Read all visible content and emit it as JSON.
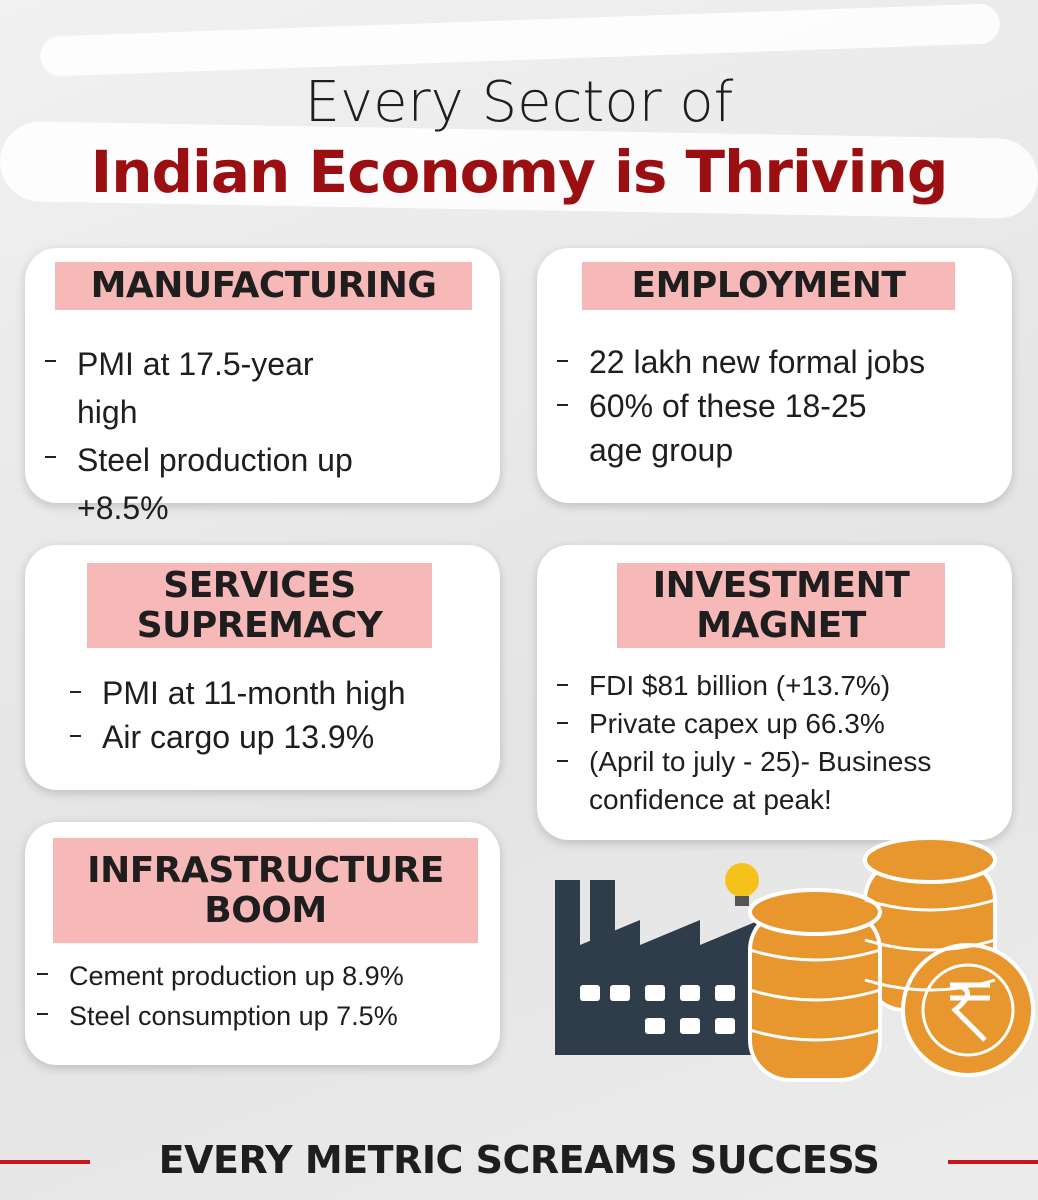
{
  "header": {
    "line1": "Every Sector of",
    "line2": "Indian Economy is Thriving"
  },
  "cards": [
    {
      "heading": "MANUFACTURING",
      "items": [
        "PMI at 17.5-year high",
        "Steel production up +8.5%"
      ]
    },
    {
      "heading": "EMPLOYMENT",
      "items": [
        "22 lakh new formal jobs",
        "60% of these 18-25 age group"
      ]
    },
    {
      "heading": "SERVICES SUPREMACY",
      "items": [
        "PMI at 11-month high",
        "Air cargo up 13.9%"
      ]
    },
    {
      "heading": "INVESTMENT MAGNET",
      "items": [
        "FDI $81 billion (+13.7%)",
        "Private capex up 66.3%",
        "(April to july - 25)- Business confidence at peak!"
      ]
    },
    {
      "heading": "INFRASTRUCTURE BOOM",
      "items": [
        "Cement production up 8.9%",
        "Steel consumption up 7.5%"
      ]
    }
  ],
  "footer": "EVERY METRIC SCREAMS SUCCESS"
}
